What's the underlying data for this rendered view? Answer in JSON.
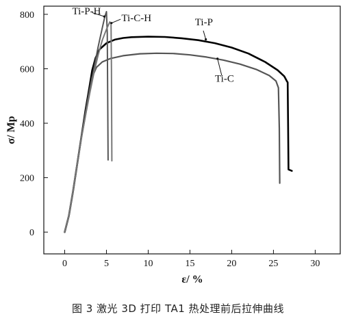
{
  "caption": "图 3  激光 3D 打印 TA1 热处理前后拉伸曲线",
  "chart_data": {
    "type": "line",
    "xlabel": "ε/ %",
    "ylabel": "σ/ Mp",
    "xlim": [
      -2.5,
      33
    ],
    "ylim": [
      -80,
      830
    ],
    "x_ticks": [
      0,
      5,
      10,
      15,
      20,
      25,
      30
    ],
    "y_ticks": [
      0,
      200,
      400,
      600,
      800
    ],
    "series": [
      {
        "name": "Ti-P",
        "color": "#000000",
        "points": [
          [
            0,
            0
          ],
          [
            0.5,
            60
          ],
          [
            1,
            150
          ],
          [
            1.5,
            250
          ],
          [
            2,
            350
          ],
          [
            2.5,
            450
          ],
          [
            3,
            540
          ],
          [
            3.3,
            595
          ],
          [
            3.7,
            640
          ],
          [
            4.2,
            672
          ],
          [
            5,
            694
          ],
          [
            6,
            707
          ],
          [
            7,
            713
          ],
          [
            8,
            716
          ],
          [
            10,
            718
          ],
          [
            12,
            717
          ],
          [
            14,
            712
          ],
          [
            16,
            705
          ],
          [
            18,
            694
          ],
          [
            20,
            678
          ],
          [
            22,
            656
          ],
          [
            24,
            625
          ],
          [
            25.5,
            595
          ],
          [
            26.3,
            572
          ],
          [
            26.6,
            555
          ],
          [
            26.7,
            550
          ],
          [
            26.75,
            400
          ],
          [
            26.8,
            230
          ],
          [
            27.2,
            225
          ]
        ]
      },
      {
        "name": "Ti-C",
        "color": "#555555",
        "points": [
          [
            0,
            0
          ],
          [
            0.5,
            60
          ],
          [
            1,
            150
          ],
          [
            1.5,
            250
          ],
          [
            2,
            350
          ],
          [
            2.5,
            440
          ],
          [
            2.9,
            510
          ],
          [
            3.3,
            570
          ],
          [
            3.8,
            605
          ],
          [
            4.5,
            625
          ],
          [
            5.5,
            638
          ],
          [
            7,
            648
          ],
          [
            9,
            655
          ],
          [
            11,
            657
          ],
          [
            13,
            656
          ],
          [
            15,
            651
          ],
          [
            17,
            643
          ],
          [
            19,
            632
          ],
          [
            21,
            617
          ],
          [
            23,
            597
          ],
          [
            24.5,
            575
          ],
          [
            25.3,
            555
          ],
          [
            25.6,
            530
          ],
          [
            25.7,
            380
          ],
          [
            25.75,
            180
          ]
        ]
      },
      {
        "name": "Ti-P-H",
        "color": "#555555",
        "points": [
          [
            0,
            0
          ],
          [
            0.5,
            60
          ],
          [
            1,
            150
          ],
          [
            1.5,
            250
          ],
          [
            2,
            345
          ],
          [
            2.5,
            430
          ],
          [
            3,
            520
          ],
          [
            3.5,
            600
          ],
          [
            4,
            680
          ],
          [
            4.5,
            750
          ],
          [
            4.8,
            790
          ],
          [
            5,
            810
          ],
          [
            5.1,
            730
          ],
          [
            5.15,
            500
          ],
          [
            5.2,
            265
          ]
        ]
      },
      {
        "name": "Ti-C-H",
        "color": "#777777",
        "points": [
          [
            0,
            0
          ],
          [
            0.5,
            60
          ],
          [
            1,
            150
          ],
          [
            1.5,
            250
          ],
          [
            2,
            345
          ],
          [
            2.5,
            430
          ],
          [
            3,
            510
          ],
          [
            3.5,
            585
          ],
          [
            4,
            650
          ],
          [
            4.5,
            705
          ],
          [
            5,
            745
          ],
          [
            5.4,
            772
          ],
          [
            5.55,
            765
          ],
          [
            5.6,
            600
          ],
          [
            5.65,
            262
          ]
        ]
      }
    ],
    "annotations": [
      {
        "text": "Ti-P-H",
        "series": "Ti-P-H"
      },
      {
        "text": "Ti-C-H",
        "series": "Ti-C-H"
      },
      {
        "text": "Ti-P",
        "series": "Ti-P"
      },
      {
        "text": "Ti-C",
        "series": "Ti-C"
      }
    ]
  }
}
